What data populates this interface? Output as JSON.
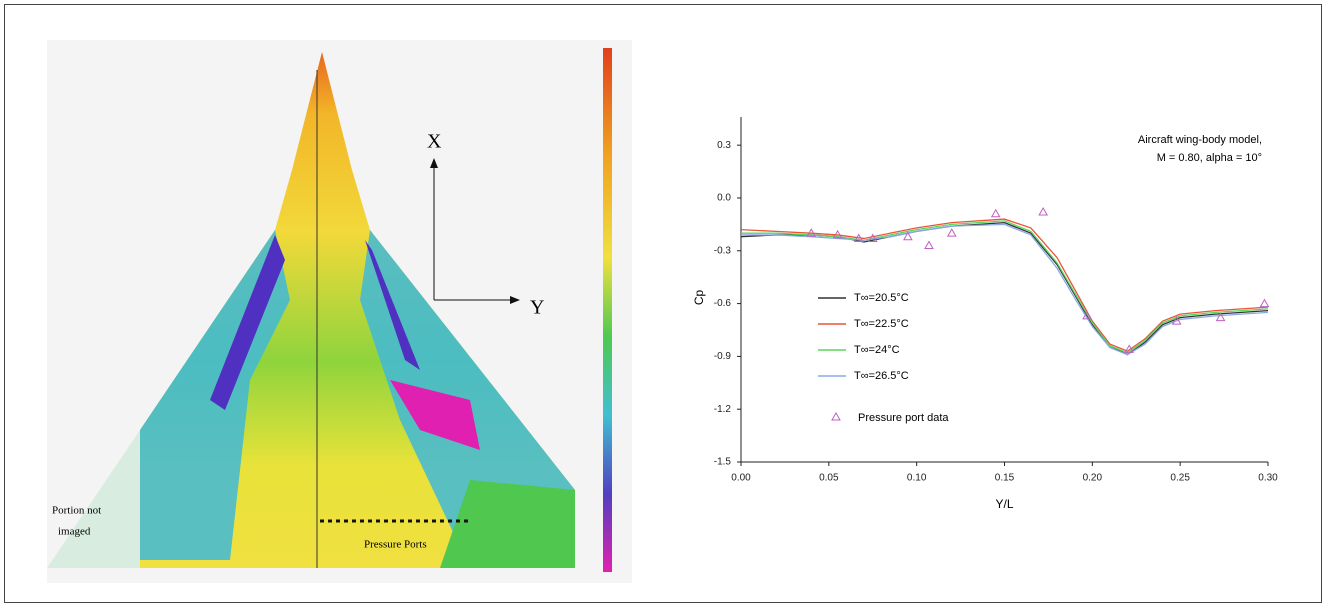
{
  "image_panel": {
    "axis_x": "X",
    "axis_y": "Y",
    "not_imaged": [
      "Portion not",
      "imaged"
    ],
    "ports": "Pressure Ports"
  },
  "chart_data": {
    "type": "line",
    "annotation": [
      "Aircraft wing-body model,",
      "M = 0.80, alpha = 10°"
    ],
    "x_label": "Y/L",
    "y_label": "Cp",
    "xlim": [
      0,
      0.3
    ],
    "ylim": [
      -1.5,
      0.46
    ],
    "xticks": [
      {
        "value": 0,
        "label": "0.00"
      },
      {
        "value": 0.05,
        "label": "0.05"
      },
      {
        "value": 0.1,
        "label": "0.10"
      },
      {
        "value": 0.15,
        "label": "0.15"
      },
      {
        "value": 0.2,
        "label": "0.20"
      },
      {
        "value": 0.25,
        "label": "0.25"
      },
      {
        "value": 0.3,
        "label": "0.30"
      }
    ],
    "yticks": [
      0.3,
      {
        "value": 0,
        "label": "0.0"
      },
      -0.3,
      -0.6,
      -0.9,
      -1.2,
      -1.5
    ],
    "x": [
      0,
      0.02,
      0.04,
      0.055,
      0.07,
      0.085,
      0.1,
      0.12,
      0.15,
      0.165,
      0.18,
      0.19,
      0.2,
      0.21,
      0.22,
      0.23,
      0.24,
      0.25,
      0.27,
      0.3
    ],
    "series": [
      {
        "name": "T∞=20.5°C",
        "color": "#333333",
        "values": [
          -0.22,
          -0.21,
          -0.21,
          -0.22,
          -0.25,
          -0.22,
          -0.19,
          -0.16,
          -0.14,
          -0.2,
          -0.38,
          -0.55,
          -0.72,
          -0.84,
          -0.89,
          -0.82,
          -0.72,
          -0.68,
          -0.66,
          -0.64
        ]
      },
      {
        "name": "T∞=22.5°C",
        "color": "#e8553a",
        "values": [
          -0.18,
          -0.19,
          -0.2,
          -0.21,
          -0.23,
          -0.2,
          -0.17,
          -0.14,
          -0.12,
          -0.17,
          -0.34,
          -0.52,
          -0.7,
          -0.83,
          -0.87,
          -0.8,
          -0.7,
          -0.66,
          -0.64,
          -0.62
        ]
      },
      {
        "name": "T∞=24°C",
        "color": "#5bd65b",
        "values": [
          -0.2,
          -0.2,
          -0.21,
          -0.22,
          -0.24,
          -0.21,
          -0.18,
          -0.15,
          -0.13,
          -0.19,
          -0.37,
          -0.54,
          -0.71,
          -0.84,
          -0.88,
          -0.81,
          -0.71,
          -0.67,
          -0.65,
          -0.63
        ]
      },
      {
        "name": "T∞=26.5°C",
        "color": "#8aa8e8",
        "values": [
          -0.21,
          -0.21,
          -0.22,
          -0.23,
          -0.24,
          -0.22,
          -0.19,
          -0.16,
          -0.15,
          -0.21,
          -0.4,
          -0.57,
          -0.73,
          -0.85,
          -0.89,
          -0.83,
          -0.73,
          -0.69,
          -0.67,
          -0.65
        ]
      }
    ],
    "points": {
      "name": "Pressure port data",
      "color": "#c060c0",
      "x": [
        0.04,
        0.055,
        0.067,
        0.075,
        0.095,
        0.107,
        0.12,
        0.145,
        0.172,
        0.197,
        0.221,
        0.248,
        0.273,
        0.298
      ],
      "values": [
        -0.2,
        -0.21,
        -0.23,
        -0.23,
        -0.22,
        -0.27,
        -0.2,
        -0.09,
        -0.08,
        -0.67,
        -0.86,
        -0.7,
        -0.68,
        -0.6
      ]
    }
  }
}
